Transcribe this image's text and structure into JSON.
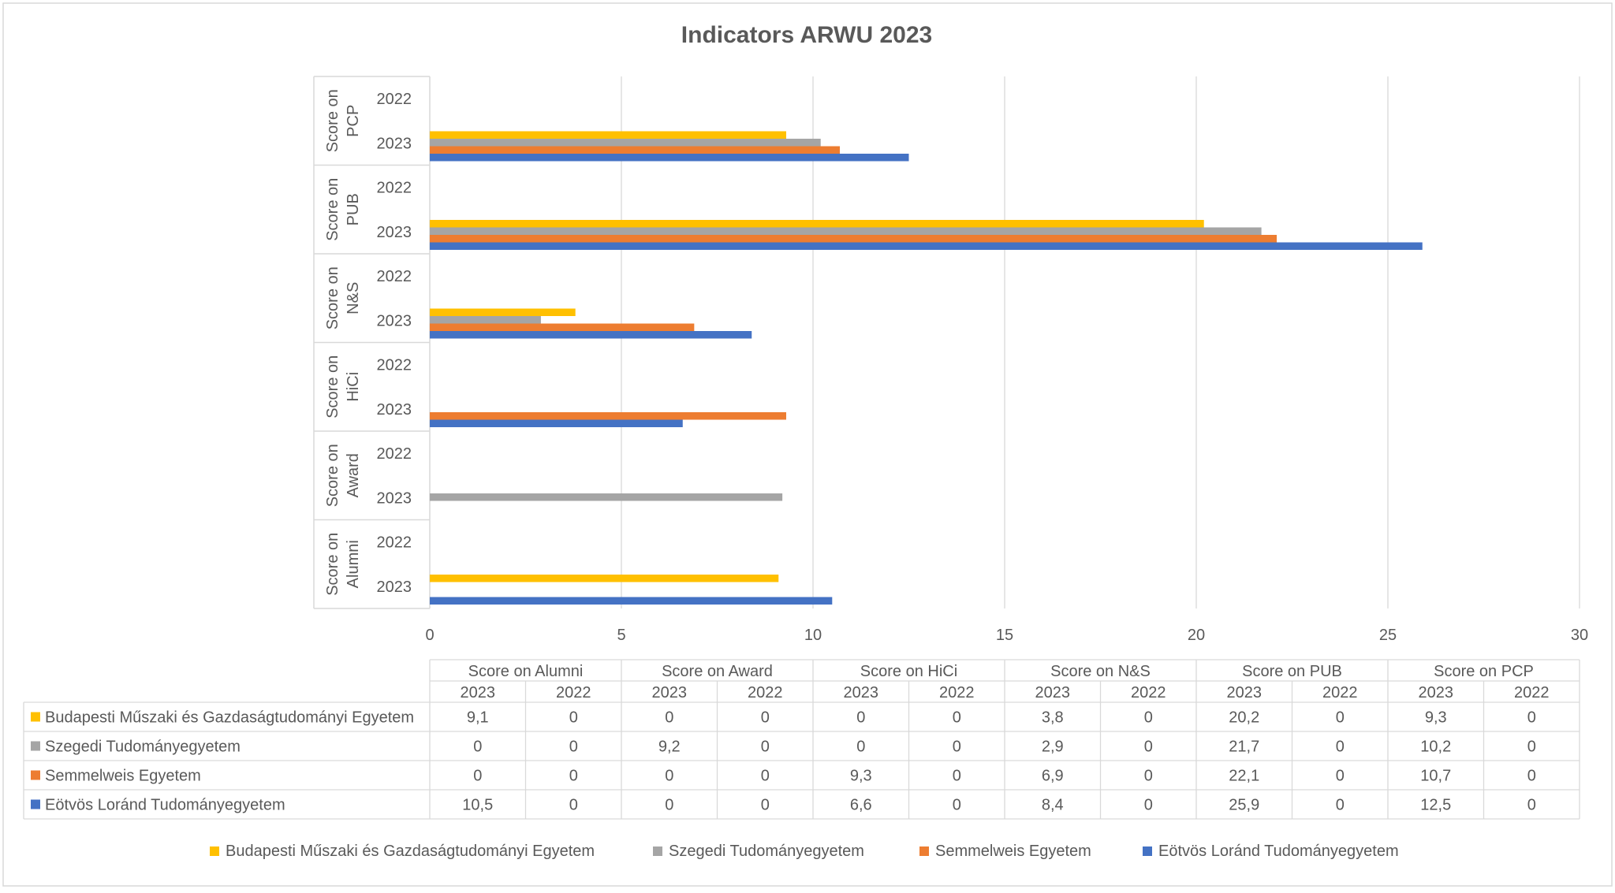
{
  "chart_data": {
    "type": "bar",
    "orientation": "horizontal",
    "title": "Indicators ARWU 2023",
    "xlabel": "",
    "ylabel": "",
    "xlim": [
      0,
      30
    ],
    "x_ticks": [
      0,
      5,
      10,
      15,
      20,
      25,
      30
    ],
    "grid": "vertical",
    "legend_position": "bottom",
    "data_table": true,
    "groups": [
      "Score on Alumni",
      "Score on Award",
      "Score on HiCi",
      "Score on N&S",
      "Score on PUB",
      "Score on PCP"
    ],
    "group_label_lines": [
      [
        "Score on",
        "Alumni"
      ],
      [
        "Score on",
        "Award"
      ],
      [
        "Score on",
        "HiCi"
      ],
      [
        "Score on",
        "N&S"
      ],
      [
        "Score on",
        "PUB"
      ],
      [
        "Score on",
        "PCP"
      ]
    ],
    "years": [
      "2023",
      "2022"
    ],
    "series": [
      {
        "name": "Budapesti Műszaki és Gazdaságtudományi Egyetem",
        "color": "#FFC000",
        "values_2023": [
          9.1,
          0,
          0,
          3.8,
          20.2,
          9.3
        ],
        "values_2022": [
          0,
          0,
          0,
          0,
          0,
          0
        ],
        "table_values": [
          "9,1",
          "0",
          "0",
          "0",
          "0",
          "0",
          "3,8",
          "0",
          "20,2",
          "0",
          "9,3",
          "0"
        ]
      },
      {
        "name": "Szegedi Tudományegyetem",
        "color": "#A5A5A5",
        "values_2023": [
          0,
          9.2,
          0,
          2.9,
          21.7,
          10.2
        ],
        "values_2022": [
          0,
          0,
          0,
          0,
          0,
          0
        ],
        "table_values": [
          "0",
          "0",
          "9,2",
          "0",
          "0",
          "0",
          "2,9",
          "0",
          "21,7",
          "0",
          "10,2",
          "0"
        ]
      },
      {
        "name": "Semmelweis Egyetem",
        "color": "#ED7D31",
        "values_2023": [
          0,
          0,
          9.3,
          6.9,
          22.1,
          10.7
        ],
        "values_2022": [
          0,
          0,
          0,
          0,
          0,
          0
        ],
        "table_values": [
          "0",
          "0",
          "0",
          "0",
          "9,3",
          "0",
          "6,9",
          "0",
          "22,1",
          "0",
          "10,7",
          "0"
        ]
      },
      {
        "name": "Eötvös Loránd Tudományegyetem",
        "color": "#4472C4",
        "values_2023": [
          10.5,
          0,
          6.6,
          8.4,
          25.9,
          12.5
        ],
        "values_2022": [
          0,
          0,
          0,
          0,
          0,
          0
        ],
        "table_values": [
          "10,5",
          "0",
          "0",
          "0",
          "6,6",
          "0",
          "8,4",
          "0",
          "25,9",
          "0",
          "12,5",
          "0"
        ]
      }
    ]
  }
}
